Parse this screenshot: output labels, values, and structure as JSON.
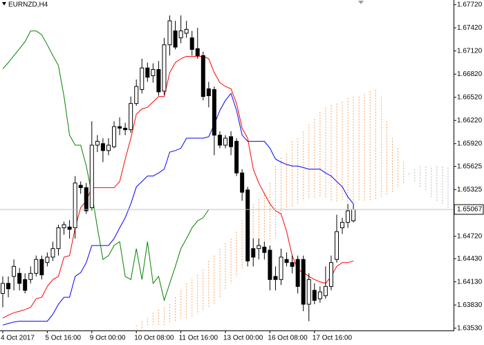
{
  "chart_data": {
    "type": "candlestick",
    "title": "EURNZD,H4",
    "categories": [
      "4 Oct 2017",
      null,
      null,
      null,
      null,
      null,
      null,
      null,
      "5 Oct 16:00",
      null,
      null,
      null,
      null,
      null,
      null,
      null,
      "9 Oct 00:00",
      null,
      null,
      null,
      null,
      null,
      null,
      null,
      "10 Oct 08:00",
      null,
      null,
      null,
      null,
      null,
      null,
      null,
      "11 Oct 16:00",
      null,
      null,
      null,
      null,
      null,
      null,
      null,
      "13 Oct 00:00",
      null,
      null,
      null,
      null,
      null,
      null,
      null,
      "16 Oct 08:00",
      null,
      null,
      null,
      null,
      null,
      null,
      null,
      "17 Oct 16:00",
      null,
      null,
      null,
      null,
      null,
      null,
      null,
      null,
      null,
      null,
      null,
      null,
      null,
      null,
      null,
      null,
      null,
      null,
      null,
      null,
      null,
      null,
      null,
      null,
      null
    ],
    "open": [
      1.6398,
      1.6411,
      1.642,
      1.6424,
      1.6416,
      1.6416,
      1.6424,
      1.6442,
      1.6438,
      1.6445,
      1.6456,
      1.6483,
      1.6484,
      1.6483,
      1.6538,
      1.6535,
      1.6509,
      1.659,
      1.6592,
      1.6583,
      1.6588,
      1.6614,
      1.6612,
      1.661,
      1.6644,
      1.6662,
      1.669,
      1.668,
      1.6688,
      1.666,
      1.672,
      1.6738,
      1.6729,
      1.6735,
      1.6729,
      1.6715,
      1.6706,
      1.6663,
      1.6662,
      1.6603,
      1.659,
      1.6601,
      1.6595,
      1.6554,
      1.6532,
      1.6456,
      1.6456,
      1.6458,
      1.6454,
      1.642,
      1.6416,
      1.6442,
      1.6438,
      1.6442,
      1.6442,
      1.6384,
      1.6402,
      1.6391,
      1.6395,
      1.6407,
      1.6442,
      1.6483,
      1.649,
      1.6492,
      null,
      null,
      null,
      null,
      null,
      null,
      null,
      null,
      null,
      null,
      null,
      null,
      null,
      null,
      null,
      null,
      null,
      null
    ],
    "high": [
      1.642,
      1.642,
      1.6442,
      1.6431,
      1.6424,
      1.6433,
      1.6447,
      1.6447,
      1.6451,
      1.6465,
      1.6487,
      1.6491,
      1.6493,
      1.655,
      1.6543,
      1.6541,
      1.6621,
      1.6603,
      1.6599,
      1.6599,
      1.6621,
      1.6626,
      1.6619,
      1.6653,
      1.6675,
      1.6702,
      1.6697,
      1.6696,
      1.6699,
      1.6729,
      1.6758,
      1.6751,
      1.6758,
      1.6751,
      1.6738,
      1.6742,
      1.6711,
      1.6672,
      1.6666,
      1.6608,
      1.6603,
      1.6608,
      1.6599,
      1.6559,
      1.6536,
      1.6469,
      1.6469,
      1.6465,
      1.646,
      1.6433,
      1.6456,
      1.6451,
      1.6447,
      1.6447,
      1.6447,
      1.6424,
      1.6411,
      1.6407,
      1.6433,
      1.6447,
      1.65,
      1.6496,
      1.6514,
      1.6514,
      null,
      null,
      null,
      null,
      null,
      null,
      null,
      null,
      null,
      null,
      null,
      null,
      null,
      null,
      null,
      null,
      null,
      null
    ],
    "low": [
      1.638,
      1.6393,
      1.6402,
      1.6402,
      1.6398,
      1.6411,
      1.642,
      1.6416,
      1.6433,
      1.644,
      1.6447,
      1.6474,
      1.6469,
      1.6469,
      1.6527,
      1.6501,
      1.6505,
      1.6581,
      1.6568,
      1.6577,
      1.6586,
      1.6603,
      1.6603,
      1.6606,
      1.6641,
      1.6657,
      1.6672,
      1.6671,
      1.6654,
      1.6655,
      1.6706,
      1.6714,
      1.6722,
      1.6729,
      1.6706,
      1.6702,
      1.6648,
      1.6639,
      1.6577,
      1.6586,
      1.6586,
      1.6577,
      1.655,
      1.6518,
      1.6433,
      1.6433,
      1.6442,
      1.6442,
      1.6402,
      1.6402,
      1.6409,
      1.6433,
      1.6424,
      1.6398,
      1.6375,
      1.6362,
      1.6384,
      1.6386,
      1.6391,
      1.6402,
      1.6438,
      1.6475,
      1.6483,
      1.649,
      null,
      null,
      null,
      null,
      null,
      null,
      null,
      null,
      null,
      null,
      null,
      null,
      null,
      null,
      null,
      null,
      null,
      null
    ],
    "close": [
      1.6411,
      1.6404,
      1.6433,
      1.6411,
      1.6402,
      1.6424,
      1.6442,
      1.6422,
      1.6445,
      1.6456,
      1.6483,
      1.6487,
      1.6481,
      1.6541,
      1.6535,
      1.6505,
      1.659,
      1.6595,
      1.6583,
      1.659,
      1.6614,
      1.6612,
      1.661,
      1.6644,
      1.6666,
      1.669,
      1.6678,
      1.6688,
      1.6659,
      1.672,
      1.6751,
      1.6717,
      1.6738,
      1.674,
      1.6714,
      1.6706,
      1.6653,
      1.6654,
      1.6603,
      1.659,
      1.6599,
      1.6588,
      1.6554,
      1.6529,
      1.644,
      1.6445,
      1.646,
      1.6451,
      1.6416,
      1.6416,
      1.6445,
      1.6438,
      1.6433,
      1.6407,
      1.6384,
      1.6416,
      1.6389,
      1.64,
      1.6407,
      1.6438,
      1.6478,
      1.649,
      1.6505,
      1.65067,
      null,
      null,
      null,
      null,
      null,
      null,
      null,
      null,
      null,
      null,
      null,
      null,
      null,
      null,
      null,
      null,
      null,
      null
    ],
    "lines": [
      {
        "color": "#ff0000",
        "values": [
          1.6366,
          1.637,
          1.6373,
          1.6375,
          1.6377,
          1.638,
          1.6391,
          1.6393,
          1.6407,
          1.6416,
          1.642,
          1.6445,
          1.6447,
          1.6483,
          1.6509,
          1.6518,
          1.6535,
          1.6535,
          1.6535,
          1.6535,
          1.6535,
          1.6543,
          1.6572,
          1.6599,
          1.663,
          1.6637,
          1.6639,
          1.6646,
          1.6653,
          1.6653,
          1.6684,
          1.6697,
          1.6702,
          1.6705,
          1.6705,
          1.6705,
          1.6705,
          1.6702,
          1.6684,
          1.6671,
          1.6666,
          1.6663,
          1.6644,
          1.6612,
          1.6599,
          1.6559,
          1.6541,
          1.6527,
          1.6514,
          1.6505,
          1.6501,
          1.6478,
          1.6447,
          1.6429,
          1.6425,
          1.642,
          1.6416,
          1.6413,
          1.6411,
          1.642,
          1.6433,
          1.6438,
          1.6438,
          1.644,
          null,
          null,
          null,
          null,
          null,
          null,
          null,
          null,
          null,
          null,
          null,
          null,
          null,
          null,
          null,
          null,
          null,
          null
        ]
      },
      {
        "color": "#0000ff",
        "values": [
          1.6357,
          1.6359,
          1.6361,
          1.6362,
          1.6362,
          1.6362,
          1.6362,
          1.6362,
          1.6362,
          1.6371,
          1.6384,
          1.6393,
          1.6393,
          1.642,
          1.6425,
          1.6438,
          1.646,
          1.646,
          1.646,
          1.646,
          1.6469,
          1.6483,
          1.6496,
          1.6514,
          1.6536,
          1.6543,
          1.655,
          1.655,
          1.6554,
          1.6559,
          1.6581,
          1.6583,
          1.6586,
          1.6599,
          1.6599,
          1.6599,
          1.6599,
          1.6601,
          1.6617,
          1.6635,
          1.6648,
          1.6657,
          1.6635,
          1.6603,
          1.6595,
          1.6595,
          1.6595,
          1.6595,
          1.6586,
          1.6572,
          1.6568,
          1.6565,
          1.6563,
          1.6563,
          1.6561,
          1.6559,
          1.6559,
          1.6559,
          1.6554,
          1.655,
          1.6543,
          1.6536,
          1.6523,
          1.6514,
          null,
          null,
          null,
          null,
          null,
          null,
          null,
          null,
          null,
          null,
          null,
          null,
          null,
          null,
          null,
          null,
          null,
          null
        ]
      },
      {
        "color": "#008000",
        "values": [
          1.6689,
          1.6697,
          1.6706,
          1.6715,
          1.6724,
          1.6738,
          1.6738,
          1.6733,
          1.672,
          1.6706,
          1.6693,
          1.6653,
          1.6603,
          1.659,
          1.659,
          1.6563,
          1.6527,
          1.6483,
          1.6442,
          1.6447,
          1.646,
          1.6465,
          1.642,
          1.6416,
          1.6456,
          1.6416,
          1.6465,
          1.6411,
          1.642,
          1.6389,
          1.6411,
          1.6433,
          1.6456,
          1.6469,
          1.6483,
          1.6492,
          1.6496,
          1.65067,
          null,
          null,
          null,
          null,
          null,
          null,
          null,
          null,
          null,
          null,
          null,
          null,
          null,
          null,
          null,
          null,
          null,
          null,
          null,
          null,
          null,
          null,
          null,
          null,
          null,
          null,
          null,
          null,
          null,
          null,
          null,
          null,
          null,
          null,
          null,
          null,
          null,
          null,
          null,
          null,
          null,
          null,
          null,
          null
        ]
      }
    ],
    "cloud": {
      "span_a": {
        "color": "#f4a460",
        "values": [
          null,
          null,
          null,
          null,
          null,
          null,
          null,
          null,
          null,
          null,
          null,
          null,
          null,
          null,
          null,
          null,
          null,
          null,
          null,
          null,
          null,
          null,
          null,
          null,
          1.6357,
          1.6362,
          1.6366,
          1.6373,
          1.6377,
          1.638,
          1.6384,
          1.6393,
          1.6402,
          1.6411,
          1.6416,
          1.6422,
          1.6429,
          1.644,
          1.6447,
          1.6456,
          1.6463,
          1.6469,
          1.6478,
          1.6493,
          1.6505,
          1.6514,
          1.652,
          1.6529,
          1.6541,
          1.6563,
          1.6574,
          1.6579,
          1.6595,
          1.6599,
          1.6608,
          1.6617,
          1.6624,
          1.6633,
          1.6639,
          1.6642,
          1.6644,
          1.6646,
          1.6651,
          1.6653,
          1.6653,
          1.6656,
          1.666,
          1.6662,
          1.6653,
          1.6621,
          1.6599,
          1.6586,
          1.6568,
          1.6554,
          1.6543,
          1.6536,
          1.6532,
          1.6523,
          1.6518,
          1.6514,
          1.6509,
          1.6505
        ]
      },
      "span_b": {
        "color": "#c8a8d8",
        "values": [
          null,
          null,
          null,
          null,
          null,
          null,
          null,
          null,
          null,
          null,
          null,
          null,
          null,
          null,
          null,
          null,
          null,
          null,
          null,
          null,
          null,
          null,
          null,
          null,
          1.6353,
          1.6353,
          1.6356,
          1.6357,
          1.6357,
          1.6357,
          1.6359,
          1.6362,
          1.6365,
          1.6366,
          1.6368,
          1.6371,
          1.6375,
          1.638,
          1.6384,
          1.6393,
          1.6402,
          1.6411,
          1.642,
          1.6429,
          1.6438,
          1.6447,
          1.6456,
          1.646,
          1.6465,
          1.6469,
          1.6501,
          1.6505,
          1.6509,
          1.6514,
          1.6518,
          1.652,
          1.6522,
          1.6522,
          1.6522,
          1.6518,
          1.6517,
          1.6517,
          1.6517,
          1.6517,
          1.6517,
          1.6517,
          1.6518,
          1.652,
          1.6523,
          1.6526,
          1.6529,
          1.6535,
          1.6541,
          1.655,
          1.6559,
          1.6563,
          1.6563,
          1.6563,
          1.6563,
          1.6563,
          1.6563,
          1.6563
        ]
      }
    },
    "current_price": 1.65067,
    "ylim": [
      1.635,
      1.6778
    ],
    "yticks": [
      {
        "value": 1.6772,
        "label": "1.67720"
      },
      {
        "value": 1.6742,
        "label": "1.67420"
      },
      {
        "value": 1.6712,
        "label": "1.67120"
      },
      {
        "value": 1.6682,
        "label": "1.66820"
      },
      {
        "value": 1.6652,
        "label": "1.66520"
      },
      {
        "value": 1.6622,
        "label": "1.66220"
      },
      {
        "value": 1.6592,
        "label": "1.65920"
      },
      1.65625,
      1.65325,
      {
        "value": 1.6472,
        "label": "1.64720"
      },
      {
        "value": 1.6443,
        "label": "1.64430"
      },
      {
        "value": 1.6413,
        "label": "1.64130"
      },
      {
        "value": 1.6383,
        "label": "1.63830"
      },
      {
        "value": 1.6353,
        "label": "1.63530"
      }
    ]
  }
}
